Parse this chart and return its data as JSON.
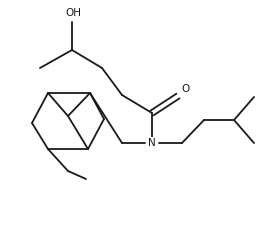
{
  "background": "#ffffff",
  "line_color": "#1a1a1a",
  "text_color": "#1a1a1a",
  "figsize": [
    2.68,
    2.31
  ],
  "dpi": 100,
  "lw": 1.3,
  "xlim": [
    0,
    268
  ],
  "ylim": [
    0,
    231
  ]
}
